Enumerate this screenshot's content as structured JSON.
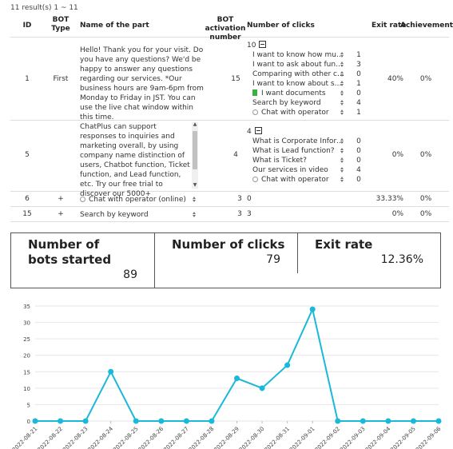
{
  "results_text": "11 result(s) 1 ~ 11",
  "headers": {
    "id": "ID",
    "bot_type": "BOT Type",
    "name": "Name of the part",
    "activation": "BOT activation number",
    "clicks": "Number of clicks",
    "exit_rate": "Exit rate",
    "achievement": "Achievement"
  },
  "rows": [
    {
      "id": "1",
      "bot_type": "First",
      "name": "Hello! Thank you for your visit. Do you have any questions? We'd be happy to answer any questions regarding our services. *Our business hours are 9am-6pm from Monday to Friday in JST. You can use the live chat window within this time.",
      "activation": "15",
      "clicks_total": "10",
      "clicks": [
        {
          "label": "I want to know how mu…",
          "count": "1",
          "icon": ""
        },
        {
          "label": "I want to ask about fun…",
          "count": "3",
          "icon": ""
        },
        {
          "label": "Comparing with other c…",
          "count": "0",
          "icon": ""
        },
        {
          "label": "I want to know about s…",
          "count": "1",
          "icon": ""
        },
        {
          "label": "I want documents",
          "count": "0",
          "icon": "document"
        },
        {
          "label": "Search by keyword",
          "count": "4",
          "icon": ""
        },
        {
          "label": "Chat with operator",
          "count": "1",
          "icon": "radio"
        }
      ],
      "exit_rate": "40%",
      "achievement": "0%"
    },
    {
      "id": "5",
      "bot_type": "",
      "name": "ChatPlus can support responses to inquiries and marketing overall, by using company name distinction of users, Chatbot function, Ticket function, and Lead function, etc. Try our free trial to discover our 5000+",
      "activation": "4",
      "clicks_total": "4",
      "clicks": [
        {
          "label": "What is Corporate Infor…",
          "count": "0",
          "icon": ""
        },
        {
          "label": "What is Lead function?",
          "count": "0",
          "icon": ""
        },
        {
          "label": "What is Ticket?",
          "count": "0",
          "icon": ""
        },
        {
          "label": "Our services in video",
          "count": "4",
          "icon": ""
        },
        {
          "label": "Chat with operator",
          "count": "0",
          "icon": "radio"
        }
      ],
      "exit_rate": "0%",
      "achievement": "0%"
    },
    {
      "id": "6",
      "bot_type": "+",
      "name": "Chat with operator (online)",
      "activation": "3",
      "clicks_total": "0",
      "exit_rate": "33.33%",
      "achievement": "0%"
    },
    {
      "id": "15",
      "bot_type": "+",
      "name": "Search by keyword",
      "activation": "3",
      "clicks_total": "3",
      "exit_rate": "0%",
      "achievement": "0%"
    }
  ],
  "summary": {
    "bots_started_label": "Number of bots started",
    "bots_started_value": "89",
    "clicks_label": "Number of clicks",
    "clicks_value": "79",
    "exit_rate_label": "Exit rate",
    "exit_rate_value": "12.36%"
  },
  "chart_data": {
    "type": "line",
    "x": [
      "2022-08-21",
      "2022-08-22",
      "2022-08-23",
      "2022-08-24",
      "2022-08-25",
      "2022-08-26",
      "2022-08-27",
      "2022-08-28",
      "2022-08-29",
      "2022-08-30",
      "2022-08-31",
      "2022-09-01",
      "2022-09-02",
      "2022-09-03",
      "2022-09-04",
      "2022-09-05",
      "2022-09-06"
    ],
    "series": [
      {
        "values": [
          0,
          0,
          0,
          15,
          0,
          0,
          0,
          0,
          13,
          10,
          17,
          34,
          0,
          0,
          0,
          0,
          0
        ]
      }
    ],
    "ylim": [
      0,
      35
    ],
    "yticks": [
      0,
      5,
      10,
      15,
      20,
      25,
      30,
      35
    ],
    "grid": true,
    "color": "#1ab8d9"
  }
}
